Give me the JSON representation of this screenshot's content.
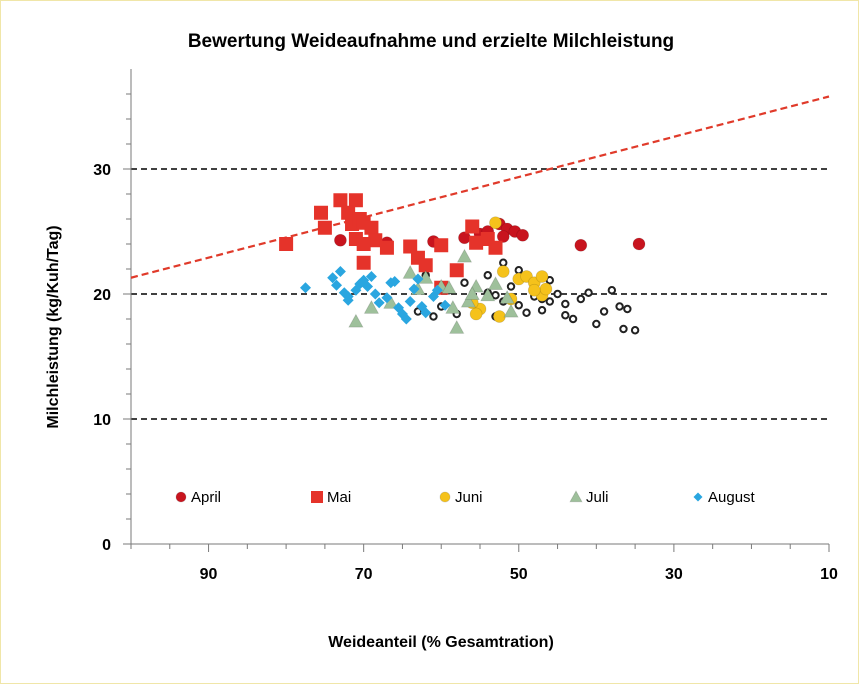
{
  "chart_data": {
    "type": "scatter",
    "title": "Bewertung Weideaufnahme und erzielte Milchleistung",
    "xlabel": "Weideanteil (% Gesamtration)",
    "ylabel": "Milchleistung  (kg/Kuh/Tag)",
    "xlim": [
      100,
      10
    ],
    "ylim": [
      0,
      38
    ],
    "x_ticks": [
      90,
      70,
      50,
      30,
      10
    ],
    "y_ticks": [
      0,
      10,
      20,
      30
    ],
    "grid_y": [
      10,
      20,
      30
    ],
    "reference_line": {
      "style": "dashed",
      "color": "#e03a2a",
      "points": [
        [
          100,
          21.3
        ],
        [
          10,
          35.8
        ]
      ]
    },
    "background_points": {
      "color": "#222222",
      "points": [
        [
          63,
          18.6
        ],
        [
          61,
          18.2
        ],
        [
          60,
          19.0
        ],
        [
          58,
          18.4
        ],
        [
          56,
          19.6
        ],
        [
          55,
          18.9
        ],
        [
          54,
          20.1
        ],
        [
          53,
          18.2
        ],
        [
          52,
          19.4
        ],
        [
          51,
          20.6
        ],
        [
          50,
          19.1
        ],
        [
          49,
          18.5
        ],
        [
          48,
          19.8
        ],
        [
          47,
          18.7
        ],
        [
          46,
          19.4
        ],
        [
          45,
          20.0
        ],
        [
          44,
          19.2
        ],
        [
          43,
          18.0
        ],
        [
          42,
          19.6
        ],
        [
          41,
          20.1
        ],
        [
          40,
          17.6
        ],
        [
          38,
          20.3
        ],
        [
          37,
          19.0
        ],
        [
          36,
          18.8
        ],
        [
          35,
          17.1
        ],
        [
          36.5,
          17.2
        ],
        [
          46,
          21.1
        ],
        [
          52,
          22.5
        ],
        [
          54,
          21.5
        ],
        [
          57,
          20.9
        ],
        [
          59,
          20.3
        ],
        [
          48,
          20.6
        ],
        [
          50,
          21.9
        ],
        [
          62,
          21.5
        ],
        [
          44,
          18.3
        ],
        [
          39,
          18.6
        ],
        [
          53,
          19.9
        ],
        [
          47,
          19.6
        ]
      ]
    },
    "series": [
      {
        "name": "April",
        "color": "#c8141e",
        "marker": "circle",
        "points": [
          [
            73,
            24.3
          ],
          [
            67,
            24.1
          ],
          [
            61,
            24.2
          ],
          [
            57,
            24.5
          ],
          [
            55,
            24.8
          ],
          [
            54,
            25.0
          ],
          [
            52.5,
            25.6
          ],
          [
            51.5,
            25.2
          ],
          [
            50.5,
            25.0
          ],
          [
            49.5,
            24.7
          ],
          [
            52,
            24.6
          ],
          [
            42,
            23.9
          ],
          [
            34.5,
            24.0
          ]
        ]
      },
      {
        "name": "Mai",
        "color": "#e5332a",
        "marker": "square",
        "points": [
          [
            80,
            24.0
          ],
          [
            75.5,
            26.5
          ],
          [
            75,
            25.3
          ],
          [
            73,
            27.5
          ],
          [
            71,
            27.5
          ],
          [
            72,
            26.5
          ],
          [
            71.5,
            25.6
          ],
          [
            70.5,
            26.0
          ],
          [
            70,
            25.7
          ],
          [
            69,
            25.3
          ],
          [
            68.5,
            24.3
          ],
          [
            71,
            24.4
          ],
          [
            70,
            24.0
          ],
          [
            67,
            23.7
          ],
          [
            64,
            23.8
          ],
          [
            63,
            22.9
          ],
          [
            62,
            22.3
          ],
          [
            60,
            23.9
          ],
          [
            58,
            21.9
          ],
          [
            56,
            25.4
          ],
          [
            55.5,
            24.1
          ],
          [
            54,
            24.4
          ],
          [
            53,
            23.7
          ],
          [
            60,
            20.5
          ],
          [
            70,
            22.5
          ]
        ]
      },
      {
        "name": "Juni",
        "color": "#f5c21b",
        "marker": "circle",
        "points": [
          [
            53,
            25.7
          ],
          [
            52,
            21.8
          ],
          [
            51,
            19.6
          ],
          [
            50,
            21.2
          ],
          [
            49,
            21.4
          ],
          [
            48,
            20.9
          ],
          [
            47,
            19.9
          ],
          [
            46.5,
            20.4
          ],
          [
            47,
            21.4
          ],
          [
            48,
            20.3
          ],
          [
            52.5,
            18.2
          ],
          [
            55,
            18.8
          ],
          [
            56,
            19.3
          ],
          [
            55.5,
            18.4
          ]
        ]
      },
      {
        "name": "Juli",
        "color": "#9ec09b",
        "marker": "triangle",
        "points": [
          [
            71,
            17.8
          ],
          [
            69,
            18.9
          ],
          [
            64,
            21.7
          ],
          [
            63,
            20.4
          ],
          [
            62,
            21.3
          ],
          [
            60,
            20.6
          ],
          [
            58.5,
            18.9
          ],
          [
            58,
            17.3
          ],
          [
            56.5,
            19.4
          ],
          [
            55.5,
            20.6
          ],
          [
            54,
            19.9
          ],
          [
            53,
            20.8
          ],
          [
            51.5,
            19.7
          ],
          [
            51,
            18.6
          ],
          [
            57,
            23.0
          ],
          [
            66.5,
            19.3
          ],
          [
            56,
            20.0
          ],
          [
            59,
            20.5
          ]
        ]
      },
      {
        "name": "August",
        "color": "#2aa6e0",
        "marker": "diamond",
        "points": [
          [
            77.5,
            20.5
          ],
          [
            74,
            21.3
          ],
          [
            73.5,
            20.7
          ],
          [
            73,
            21.8
          ],
          [
            72.5,
            20.1
          ],
          [
            72,
            19.5
          ],
          [
            71,
            20.3
          ],
          [
            70,
            21.1
          ],
          [
            69.5,
            20.6
          ],
          [
            69,
            21.4
          ],
          [
            68.5,
            20.0
          ],
          [
            68,
            19.3
          ],
          [
            67,
            19.7
          ],
          [
            66.5,
            20.9
          ],
          [
            66,
            21.0
          ],
          [
            65.5,
            18.9
          ],
          [
            65,
            18.4
          ],
          [
            64.5,
            18.0
          ],
          [
            64,
            19.4
          ],
          [
            63.5,
            20.4
          ],
          [
            63,
            21.2
          ],
          [
            62.5,
            19.0
          ],
          [
            62,
            18.5
          ],
          [
            61,
            19.8
          ],
          [
            60.5,
            20.3
          ],
          [
            59.5,
            19.1
          ],
          [
            72,
            19.8
          ],
          [
            70.5,
            20.8
          ]
        ]
      }
    ]
  }
}
